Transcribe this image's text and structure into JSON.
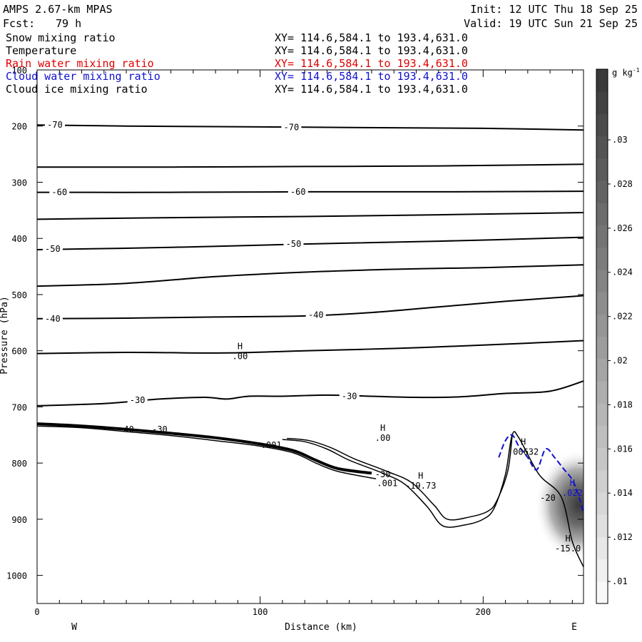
{
  "header": {
    "model": "AMPS 2.67-km MPAS",
    "init": "Init: 12 UTC Thu 18 Sep 25",
    "fcst_label": "Fcst:",
    "fcst_value": "79 h",
    "valid": "Valid: 19 UTC Sun 21 Sep 25"
  },
  "fields": [
    {
      "name": "Snow mixing ratio",
      "xy": "XY= 114.6,584.1 to 193.4,631.0",
      "color": "#000000"
    },
    {
      "name": "Temperature",
      "xy": "XY= 114.6,584.1 to 193.4,631.0",
      "color": "#000000"
    },
    {
      "name": "Rain water mixing ratio",
      "xy": "XY= 114.6,584.1 to 193.4,631.0",
      "color": "#e00000"
    },
    {
      "name": "Cloud water mixing ratio",
      "xy": "XY= 114.6,584.1 to 193.4,631.0",
      "color": "#1010d0"
    },
    {
      "name": "Cloud ice mixing ratio",
      "xy": "XY= 114.6,584.1 to 193.4,631.0",
      "color": "#000000"
    }
  ],
  "chart_data": {
    "type": "cross-section contour",
    "xlabel": "Distance (km)",
    "ylabel": "Pressure (hPa)",
    "xlim": [
      0,
      245
    ],
    "ylim": [
      1050,
      100
    ],
    "x_ticks": [
      0,
      100,
      200
    ],
    "y_ticks": [
      100,
      200,
      300,
      400,
      500,
      600,
      700,
      800,
      900,
      1000
    ],
    "x_end_labels": {
      "left": "W",
      "right": "E"
    },
    "colorbar": {
      "unit": "g kg",
      "unit_exp": "-1",
      "ticks": [
        ".01",
        ".012",
        ".014",
        ".016",
        ".018",
        ".02",
        ".022",
        ".024",
        ".026",
        ".028",
        ".03"
      ],
      "values": [
        0.01,
        0.012,
        0.014,
        0.016,
        0.018,
        0.02,
        0.022,
        0.024,
        0.026,
        0.028,
        0.03
      ]
    },
    "temperature_contours": [
      {
        "level": -70,
        "label": "-70",
        "points": [
          [
            0,
            198
          ],
          [
            40,
            200
          ],
          [
            80,
            201
          ],
          [
            120,
            202
          ],
          [
            160,
            203
          ],
          [
            200,
            204
          ],
          [
            245,
            207
          ]
        ],
        "labels_at": [
          [
            8,
            198
          ],
          [
            114,
            202
          ]
        ]
      },
      {
        "level": -65,
        "label": "",
        "points": [
          [
            0,
            273
          ],
          [
            60,
            273
          ],
          [
            120,
            272
          ],
          [
            180,
            271
          ],
          [
            245,
            268
          ]
        ],
        "labels_at": []
      },
      {
        "level": -60,
        "label": "-60",
        "points": [
          [
            0,
            318
          ],
          [
            60,
            318
          ],
          [
            120,
            317
          ],
          [
            180,
            317
          ],
          [
            245,
            316
          ]
        ],
        "labels_at": [
          [
            10,
            318
          ],
          [
            117,
            317
          ]
        ]
      },
      {
        "level": -55,
        "label": "",
        "points": [
          [
            0,
            366
          ],
          [
            60,
            363
          ],
          [
            120,
            361
          ],
          [
            180,
            358
          ],
          [
            245,
            354
          ]
        ],
        "labels_at": []
      },
      {
        "level": -50,
        "label": "-50",
        "points": [
          [
            0,
            420
          ],
          [
            60,
            416
          ],
          [
            120,
            410
          ],
          [
            180,
            405
          ],
          [
            245,
            398
          ]
        ],
        "labels_at": [
          [
            7,
            419
          ],
          [
            115,
            410
          ]
        ]
      },
      {
        "level": -45,
        "label": "",
        "points": [
          [
            0,
            485
          ],
          [
            40,
            480
          ],
          [
            80,
            468
          ],
          [
            120,
            460
          ],
          [
            160,
            455
          ],
          [
            200,
            452
          ],
          [
            245,
            447
          ]
        ],
        "labels_at": []
      },
      {
        "level": -40,
        "label": "-40",
        "points": [
          [
            0,
            543
          ],
          [
            40,
            542
          ],
          [
            80,
            540
          ],
          [
            120,
            538
          ],
          [
            150,
            532
          ],
          [
            180,
            522
          ],
          [
            210,
            512
          ],
          [
            245,
            502
          ]
        ],
        "labels_at": [
          [
            7,
            543
          ],
          [
            125,
            536
          ]
        ]
      },
      {
        "level": -35,
        "label": "",
        "points": [
          [
            0,
            605
          ],
          [
            40,
            603
          ],
          [
            85,
            604
          ],
          [
            120,
            600
          ],
          [
            160,
            596
          ],
          [
            200,
            590
          ],
          [
            245,
            582
          ]
        ],
        "labels_at": []
      },
      {
        "level": -30,
        "label": "-30",
        "points": [
          [
            0,
            698
          ],
          [
            30,
            694
          ],
          [
            55,
            686
          ],
          [
            75,
            683
          ],
          [
            85,
            686
          ],
          [
            95,
            681
          ],
          [
            110,
            681
          ],
          [
            130,
            679
          ],
          [
            150,
            681
          ],
          [
            170,
            683
          ],
          [
            190,
            682
          ],
          [
            210,
            676
          ],
          [
            230,
            672
          ],
          [
            245,
            654
          ]
        ],
        "labels_at": [
          [
            45,
            688
          ],
          [
            140,
            681
          ]
        ]
      }
    ],
    "terrain_contours": [
      {
        "points": [
          [
            0,
            730
          ],
          [
            20,
            734
          ],
          [
            40,
            740
          ],
          [
            60,
            747
          ],
          [
            80,
            755
          ],
          [
            100,
            766
          ],
          [
            115,
            778
          ],
          [
            125,
            795
          ],
          [
            135,
            810
          ],
          [
            150,
            818
          ]
        ]
      },
      {
        "points": [
          [
            0,
            734
          ],
          [
            20,
            737
          ],
          [
            40,
            744
          ],
          [
            60,
            751
          ],
          [
            80,
            760
          ],
          [
            100,
            770
          ],
          [
            115,
            782
          ],
          [
            125,
            800
          ],
          [
            135,
            815
          ],
          [
            152,
            828
          ]
        ]
      },
      {
        "points": [
          [
            110,
            758
          ],
          [
            120,
            762
          ],
          [
            130,
            775
          ],
          [
            140,
            795
          ],
          [
            155,
            818
          ],
          [
            165,
            838
          ],
          [
            175,
            878
          ],
          [
            182,
            912
          ],
          [
            192,
            910
          ],
          [
            200,
            900
          ],
          [
            205,
            880
          ],
          [
            210,
            820
          ],
          [
            213,
            750
          ],
          [
            216,
            755
          ],
          [
            225,
            820
          ],
          [
            235,
            860
          ],
          [
            240,
            940
          ],
          [
            245,
            985
          ]
        ]
      },
      {
        "points": [
          [
            112,
            756
          ],
          [
            122,
            760
          ],
          [
            132,
            773
          ],
          [
            142,
            792
          ],
          [
            157,
            815
          ],
          [
            168,
            835
          ],
          [
            178,
            875
          ],
          [
            184,
            900
          ],
          [
            194,
            896
          ],
          [
            202,
            886
          ],
          [
            206,
            868
          ],
          [
            211,
            815
          ],
          [
            213,
            752
          ]
        ]
      }
    ],
    "cloud_water_contour": {
      "color": "#1010d0",
      "points": [
        [
          207,
          790
        ],
        [
          210,
          760
        ],
        [
          213,
          750
        ],
        [
          216,
          770
        ],
        [
          220,
          790
        ],
        [
          224,
          812
        ],
        [
          228,
          775
        ],
        [
          232,
          790
        ],
        [
          236,
          810
        ],
        [
          240,
          830
        ],
        [
          243,
          860
        ],
        [
          245,
          890
        ]
      ]
    },
    "shaded_max": {
      "x": 243,
      "y": 875,
      "max": 0.022
    },
    "annotations": [
      {
        "type": "H",
        "value": ".00",
        "x": 91,
        "y": 600
      },
      {
        "type": "H",
        "value": ".00",
        "x": 155,
        "y": 745
      },
      {
        "type": "H",
        "value": ".00632",
        "x": 218,
        "y": 770
      },
      {
        "type": "H",
        "value": ".022",
        "x": 240,
        "y": 843
      },
      {
        "type": "H",
        "value": "-19.73",
        "x": 172,
        "y": 830
      },
      {
        "type": "H",
        "value": "-15.0",
        "x": 238,
        "y": 942
      },
      {
        "type": "label",
        "value": "-20",
        "x": 229,
        "y": 862
      },
      {
        "type": "label",
        "value": "-30",
        "x": 155,
        "y": 820
      },
      {
        "type": "label",
        "value": ".001",
        "x": 157,
        "y": 836
      },
      {
        "type": "label",
        "value": "-40",
        "x": 40,
        "y": 740
      },
      {
        "type": "label",
        "value": "-30",
        "x": 55,
        "y": 740
      },
      {
        "type": "label",
        "value": ".001",
        "x": 105,
        "y": 768
      }
    ]
  }
}
